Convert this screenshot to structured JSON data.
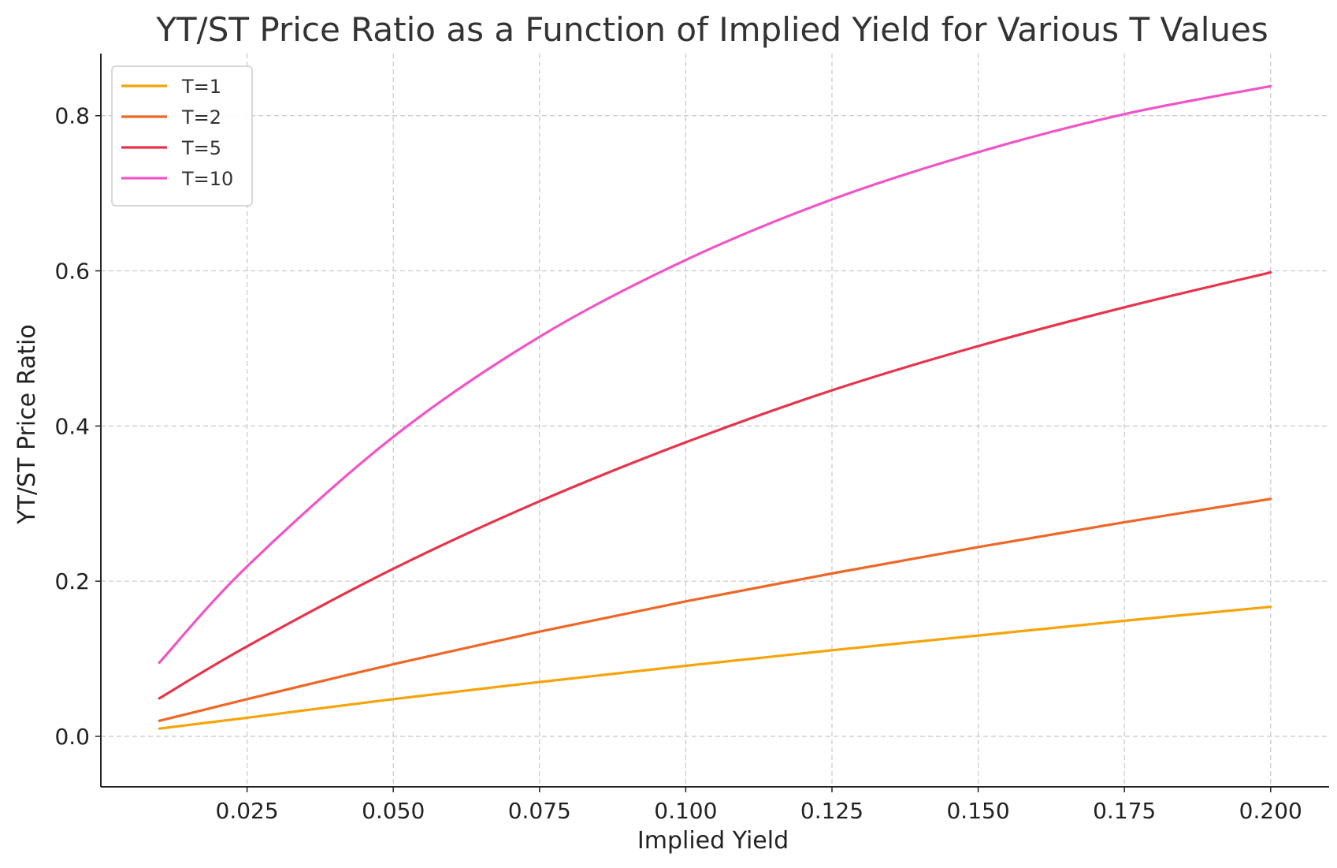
{
  "chart_data": {
    "type": "line",
    "title": "YT/ST Price Ratio as a Function of Implied Yield for Various T Values",
    "xlabel": "Implied Yield",
    "ylabel": "YT/ST Price Ratio",
    "xlim": [
      0.0,
      0.21
    ],
    "ylim": [
      -0.065,
      0.88
    ],
    "xticks": [
      0.025,
      0.05,
      0.075,
      0.1,
      0.125,
      0.15,
      0.175,
      0.2
    ],
    "xtick_labels": [
      "0.025",
      "0.050",
      "0.075",
      "0.100",
      "0.125",
      "0.150",
      "0.175",
      "0.200"
    ],
    "yticks": [
      0.0,
      0.2,
      0.4,
      0.6,
      0.8
    ],
    "ytick_labels": [
      "0.0",
      "0.2",
      "0.4",
      "0.6",
      "0.8"
    ],
    "grid": true,
    "legend_position": "top-left",
    "x": [
      0.01,
      0.025,
      0.05,
      0.075,
      0.1,
      0.125,
      0.15,
      0.175,
      0.2
    ],
    "series": [
      {
        "name": "T=1",
        "color": "#f5a40a",
        "values": [
          0.01,
          0.024,
          0.048,
          0.07,
          0.091,
          0.111,
          0.13,
          0.149,
          0.167
        ]
      },
      {
        "name": "T=2",
        "color": "#ee6726",
        "values": [
          0.02,
          0.048,
          0.093,
          0.135,
          0.174,
          0.21,
          0.244,
          0.276,
          0.306
        ]
      },
      {
        "name": "T=5",
        "color": "#e8334a",
        "values": [
          0.049,
          0.116,
          0.216,
          0.303,
          0.379,
          0.446,
          0.503,
          0.553,
          0.598
        ]
      },
      {
        "name": "T=10",
        "color": "#f054c8",
        "values": [
          0.095,
          0.219,
          0.386,
          0.515,
          0.614,
          0.692,
          0.753,
          0.802,
          0.838
        ]
      }
    ]
  }
}
